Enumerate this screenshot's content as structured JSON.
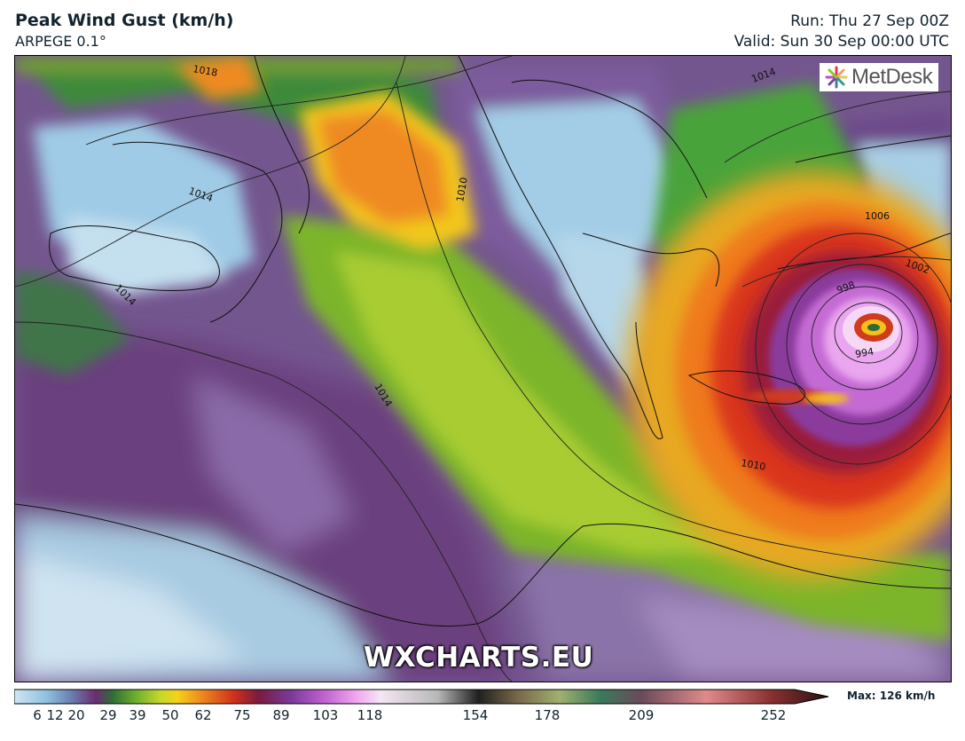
{
  "header": {
    "title": "Peak Wind Gust (km/h)",
    "model": "ARPEGE 0.1°",
    "run": "Run: Thu 27 Sep 00Z",
    "valid": "Valid: Sun 30 Sep 00:00 UTC"
  },
  "logo": {
    "text": "MetDesk"
  },
  "watermark": "WXCHARTS.EU",
  "isobar_labels": [
    "1018",
    "1014",
    "1014",
    "1010",
    "1014",
    "1014",
    "1006",
    "1002",
    "998",
    "994",
    "1010"
  ],
  "colorbar": {
    "ticks": [
      "6",
      "12",
      "20",
      "29",
      "39",
      "50",
      "62",
      "75",
      "89",
      "103",
      "118",
      "154",
      "178",
      "209",
      "252"
    ],
    "max_label": "Max: 126 km/h"
  },
  "colors": {
    "calm_light": "#a9d3ea",
    "calm_purple": "#6e4f8e",
    "green": "#7fb82c",
    "yellow": "#f2d21a",
    "orange": "#f08a1e",
    "red": "#d8321c",
    "magenta": "#c060d0",
    "pink": "#f0a0f0"
  }
}
